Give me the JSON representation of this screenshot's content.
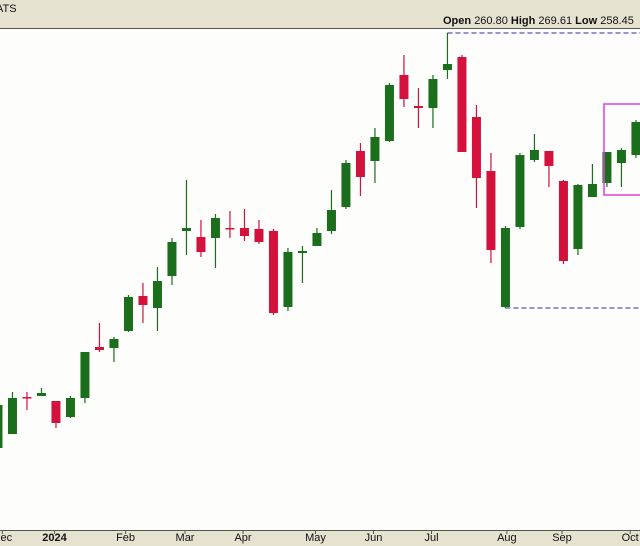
{
  "chart_data": {
    "type": "candlestick",
    "title": "ATS",
    "header": {
      "open_label": "Open",
      "open": "260.80",
      "high_label": "High",
      "high": "269.61",
      "low_label": "Low",
      "low": "258.45"
    },
    "categories": [
      null,
      null,
      null,
      null,
      null,
      null,
      null,
      null,
      null,
      null,
      null,
      null,
      null,
      null,
      null,
      null,
      null,
      null,
      null,
      null,
      null,
      null,
      null,
      null,
      null,
      null,
      null,
      null,
      null,
      null,
      null,
      null,
      null,
      null,
      null,
      null,
      null,
      null,
      null,
      null,
      null,
      null,
      null,
      null,
      null
    ],
    "open": [
      239.6,
      241.28,
      245.72,
      245.84,
      245.24,
      243.32,
      245.6,
      251.72,
      251.6,
      253.64,
      257.84,
      256.4,
      260.24,
      265.64,
      264.92,
      264.8,
      266.0,
      266.0,
      265.88,
      265.64,
      256.52,
      263.0,
      263.84,
      265.64,
      268.52,
      275.24,
      274.04,
      276.44,
      284.36,
      280.64,
      280.4,
      284.96,
      286.52,
      279.32,
      272.84,
      256.52,
      266.12,
      274.16,
      275.24,
      271.64,
      263.48,
      269.72,
      271.4,
      273.8,
      274.76
    ],
    "high": [
      245.36,
      246.32,
      246.32,
      246.8,
      245.24,
      245.84,
      251.12,
      254.6,
      252.92,
      257.96,
      259.4,
      261.32,
      264.8,
      271.76,
      266.96,
      267.68,
      268.04,
      268.28,
      266.96,
      265.88,
      263.6,
      263.84,
      266.0,
      270.56,
      274.16,
      276.2,
      278.0,
      283.4,
      286.76,
      282.8,
      284.36,
      289.4,
      286.76,
      280.76,
      275.0,
      266.24,
      275.0,
      277.28,
      275.24,
      271.76,
      271.28,
      273.68,
      275.12,
      275.6,
      278.96
    ],
    "low": [
      239.6,
      241.28,
      244.16,
      245.84,
      242.0,
      243.2,
      245.0,
      251.12,
      249.92,
      253.52,
      254.6,
      253.64,
      259.16,
      262.76,
      262.52,
      261.2,
      264.8,
      264.44,
      264.08,
      255.56,
      256.04,
      259.4,
      263.84,
      265.28,
      268.28,
      269.84,
      271.4,
      276.32,
      280.52,
      278.0,
      278.0,
      283.88,
      275.12,
      268.4,
      261.8,
      256.4,
      265.88,
      273.92,
      270.92,
      261.68,
      262.76,
      269.72,
      270.92,
      270.92,
      274.4
    ],
    "close": [
      244.76,
      245.6,
      245.6,
      246.2,
      242.6,
      245.6,
      251.12,
      251.36,
      252.68,
      257.72,
      256.76,
      259.64,
      264.32,
      266.0,
      263.12,
      267.2,
      265.88,
      265.04,
      264.32,
      255.8,
      263.12,
      263.24,
      265.4,
      268.16,
      273.8,
      272.12,
      276.92,
      283.16,
      281.48,
      280.4,
      283.88,
      285.68,
      275.12,
      272.0,
      263.36,
      266.0,
      274.76,
      275.36,
      273.44,
      262.04,
      271.16,
      271.28,
      275.12,
      275.36,
      278.72
    ],
    "up_color": "#1b6e1b",
    "down_color": "#d4103c",
    "xlim": [
      0.14,
      44.28
    ],
    "ylim": [
      230,
      290
    ],
    "xticks": [
      {
        "value": 0.3,
        "label": "Dec"
      },
      {
        "value": 3.9,
        "label": "2024",
        "bold": true
      },
      {
        "value": 8.8,
        "label": "Feb"
      },
      {
        "value": 12.9,
        "label": "Mar"
      },
      {
        "value": 16.9,
        "label": "Apr"
      },
      {
        "value": 21.9,
        "label": "May"
      },
      {
        "value": 25.9,
        "label": "Jun"
      },
      {
        "value": 29.9,
        "label": "Jul"
      },
      {
        "value": 35.1,
        "label": "Aug"
      },
      {
        "value": 38.9,
        "label": "Sep"
      },
      {
        "value": 43.6,
        "label": "Oct"
      }
    ]
  }
}
